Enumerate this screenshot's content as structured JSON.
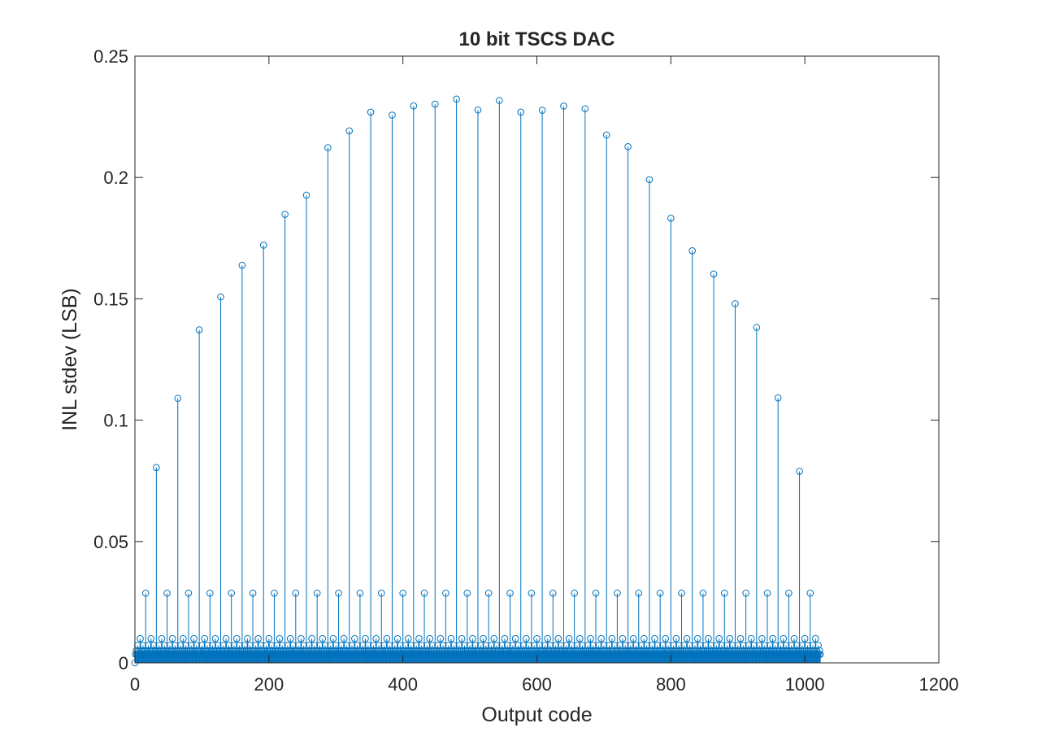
{
  "chart_data": {
    "type": "stem",
    "title": "10 bit TSCS DAC",
    "xlabel": "Output code",
    "ylabel": "INL stdev (LSB)",
    "xlim": [
      0,
      1200
    ],
    "ylim": [
      0,
      0.25
    ],
    "xticks": [
      "0",
      "200",
      "400",
      "600",
      "800",
      "1000",
      "1200"
    ],
    "yticks": [
      "0",
      "0.05",
      "0.1",
      "0.15",
      "0.2",
      "0.25"
    ],
    "grid": false,
    "color": "#0072BD",
    "code_range": [
      0,
      1023
    ],
    "segment_codes": [
      32,
      64,
      96,
      128,
      160,
      192,
      224,
      256,
      288,
      320,
      352,
      384,
      416,
      448,
      480,
      512,
      544,
      576,
      608,
      640,
      672,
      704,
      736,
      768,
      800,
      832,
      864,
      896,
      928,
      960,
      992
    ],
    "segment_values": [
      0.0805,
      0.109,
      0.1372,
      0.1508,
      0.1638,
      0.1721,
      0.1848,
      0.1927,
      0.2123,
      0.2192,
      0.2269,
      0.2257,
      0.2295,
      0.2302,
      0.2323,
      0.2278,
      0.2317,
      0.2269,
      0.2277,
      0.2294,
      0.2283,
      0.2175,
      0.2127,
      0.1991,
      0.1832,
      0.1698,
      0.1602,
      0.148,
      0.1382,
      0.1092,
      0.0789
    ],
    "binary_level_values": [
      0.0035,
      0.005,
      0.0072,
      0.01,
      0.0135,
      0.0172,
      0.0287
    ],
    "binary_level_periods": [
      1,
      2,
      4,
      8,
      16,
      32,
      16
    ],
    "binary_level_offsets": [
      1,
      2,
      4,
      8,
      16,
      32,
      16
    ]
  }
}
